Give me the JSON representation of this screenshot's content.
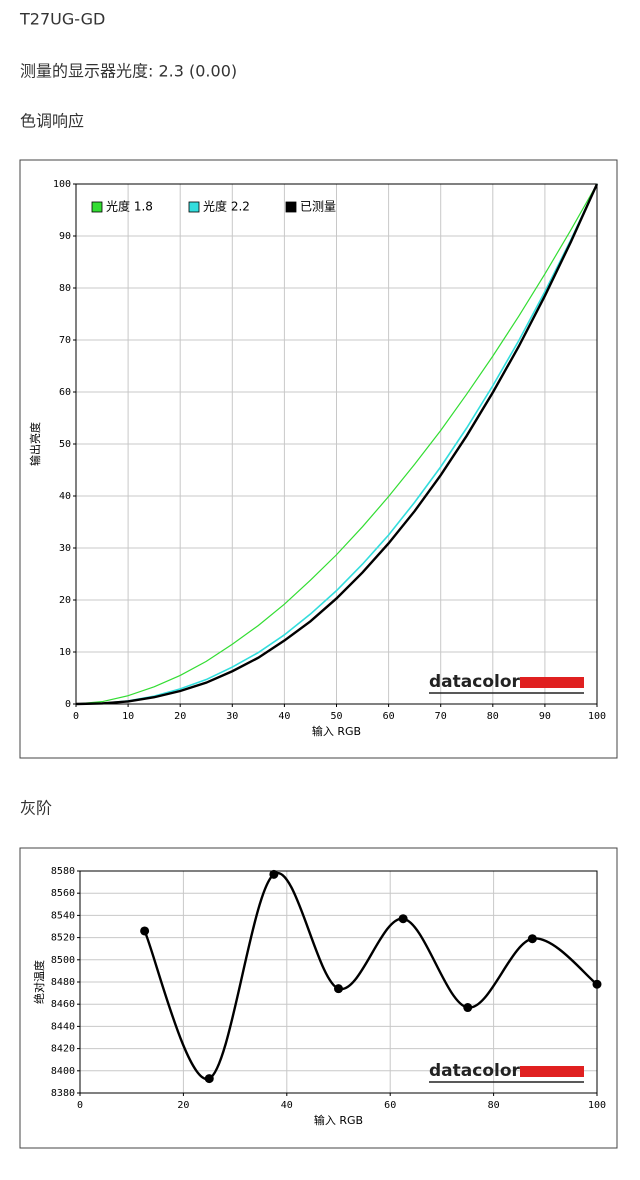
{
  "header": {
    "title": "T27UG-GD",
    "gamma_line": "测量的显示器光度: 2.3 (0.00)",
    "section1": "色调响应",
    "section2": "灰阶"
  },
  "chart_data": [
    {
      "type": "line",
      "xlabel": "输入 RGB",
      "ylabel": "输出亮度",
      "watermark": "datacolor",
      "grid": true,
      "legend": "upper left",
      "x": [
        0,
        5,
        10,
        15,
        20,
        25,
        30,
        35,
        40,
        45,
        50,
        55,
        60,
        65,
        70,
        75,
        80,
        85,
        90,
        95,
        100
      ],
      "series": [
        {
          "name": "光度 1.8",
          "color": "#33dd33",
          "width": 1.2,
          "values": [
            0,
            0.45,
            1.6,
            3.3,
            5.5,
            8.2,
            11.5,
            15.1,
            19.2,
            23.8,
            28.7,
            34.1,
            39.9,
            46.1,
            52.6,
            59.6,
            66.9,
            74.6,
            82.7,
            91.2,
            100
          ]
        },
        {
          "name": "光度 2.2",
          "color": "#33dddd",
          "width": 1.6,
          "values": [
            0,
            0.1,
            0.6,
            1.5,
            2.9,
            4.7,
            7.1,
            9.9,
            13.3,
            17.3,
            21.8,
            26.9,
            32.5,
            38.8,
            45.6,
            53.1,
            61.2,
            69.9,
            79.3,
            89.3,
            100
          ]
        },
        {
          "name": "已测量",
          "color": "#000000",
          "width": 2.4,
          "values": [
            0,
            0.1,
            0.5,
            1.3,
            2.5,
            4.1,
            6.3,
            8.9,
            12.2,
            15.9,
            20.3,
            25.3,
            30.9,
            37.1,
            44.0,
            51.6,
            59.9,
            68.8,
            78.5,
            88.9,
            100
          ]
        }
      ],
      "xlim": [
        0,
        100
      ],
      "xticks": [
        0,
        10,
        20,
        30,
        40,
        50,
        60,
        70,
        80,
        90,
        100
      ],
      "ylim": [
        0,
        100
      ],
      "yticks": [
        0,
        10,
        20,
        30,
        40,
        50,
        60,
        70,
        80,
        90,
        100
      ]
    },
    {
      "type": "line",
      "xlabel": "输入 RGB",
      "ylabel": "绝对温度",
      "watermark": "datacolor",
      "grid": true,
      "smooth": true,
      "markers": true,
      "x": [
        12.5,
        25,
        37.5,
        50,
        62.5,
        75,
        87.5,
        100
      ],
      "series": [
        {
          "color": "#000000",
          "width": 2.4,
          "values": [
            8526,
            8393,
            8577,
            8474,
            8537,
            8457,
            8519,
            8478
          ]
        }
      ],
      "xlim": [
        0,
        100
      ],
      "xticks": [
        0,
        20,
        40,
        60,
        80,
        100
      ],
      "ylim": [
        8380,
        8580
      ],
      "yticks": [
        8380,
        8400,
        8420,
        8440,
        8460,
        8480,
        8500,
        8520,
        8540,
        8560,
        8580
      ]
    }
  ]
}
